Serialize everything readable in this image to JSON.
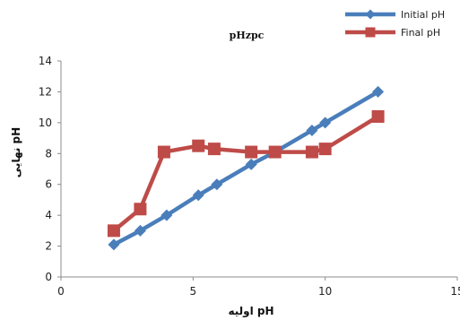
{
  "chart_data": {
    "type": "line",
    "title": "pHzpc",
    "xlabel": "pH اولیه",
    "ylabel": "pH نهایی",
    "xlim": [
      0,
      15
    ],
    "ylim": [
      0,
      14
    ],
    "xticks": [
      0,
      5,
      10,
      15
    ],
    "yticks": [
      0,
      2,
      4,
      6,
      8,
      10,
      12,
      14
    ],
    "grid": false,
    "legend_position": "top-right",
    "series": [
      {
        "name": "Initial pH",
        "color": "#4a7ebb",
        "marker": "diamond",
        "x": [
          2,
          3,
          4,
          5.2,
          5.9,
          7.2,
          8.1,
          9.5,
          10,
          12
        ],
        "y": [
          2.1,
          3,
          4,
          5.3,
          6,
          7.3,
          8.1,
          9.5,
          10,
          12
        ]
      },
      {
        "name": "Final pH",
        "color": "#be4b48",
        "marker": "square",
        "x": [
          2,
          3,
          3.9,
          5.2,
          5.8,
          7.2,
          8.1,
          9.5,
          10,
          12
        ],
        "y": [
          3,
          4.4,
          8.1,
          8.5,
          8.3,
          8.1,
          8.1,
          8.1,
          8.3,
          10.4
        ]
      }
    ]
  }
}
